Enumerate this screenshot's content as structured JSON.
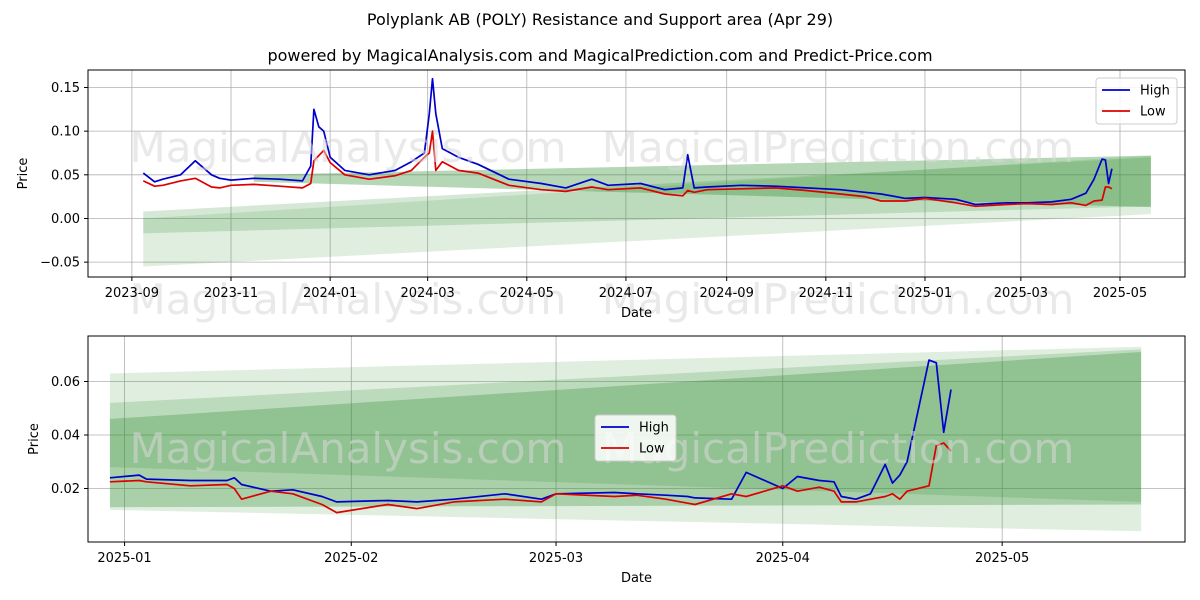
{
  "title": "Polyplank AB (POLY) Resistance and Support area (Apr 29)",
  "subtitle": "powered by MagicalAnalysis.com and MagicalPrediction.com and Predict-Price.com",
  "watermarks": [
    "MagicalAnalysis.com",
    "MagicalPrediction.com"
  ],
  "colors": {
    "high": "#0000cc",
    "low": "#dd0000",
    "band": "#2e8b2e",
    "grid": "#b0b0b0"
  },
  "chart_data": [
    {
      "type": "line",
      "xlabel": "Date",
      "ylabel": "Price",
      "xlim": [
        "2023-08-05",
        "2025-06-10"
      ],
      "ylim": [
        -0.067,
        0.17
      ],
      "x_ticks": [
        "2023-09",
        "2023-11",
        "2024-01",
        "2024-03",
        "2024-05",
        "2024-07",
        "2024-09",
        "2024-11",
        "2025-01",
        "2025-03",
        "2025-05"
      ],
      "y_ticks": [
        -0.05,
        0.0,
        0.05,
        0.1,
        0.15
      ],
      "y_tick_labels": [
        "−0.05",
        "0.00",
        "0.05",
        "0.10",
        "0.15"
      ],
      "grid": true,
      "legend": "top-right",
      "legend_entries": [
        "High",
        "Low"
      ],
      "bands": [
        {
          "x": [
            "2023-09-08",
            "2025-05-20"
          ],
          "lower": [
            -0.055,
            0.005
          ],
          "upper": [
            0.0,
            0.072
          ],
          "opacity": 0.15
        },
        {
          "x": [
            "2023-09-08",
            "2025-05-20"
          ],
          "lower": [
            -0.017,
            0.014
          ],
          "upper": [
            0.008,
            0.07
          ],
          "opacity": 0.2
        },
        {
          "x": [
            "2023-11-15",
            "2025-05-20"
          ],
          "lower": [
            0.042,
            0.013
          ],
          "upper": [
            0.05,
            0.072
          ],
          "opacity": 0.35
        }
      ],
      "series": [
        {
          "name": "High",
          "x": [
            "2023-09-08",
            "2023-09-15",
            "2023-09-20",
            "2023-10-01",
            "2023-10-10",
            "2023-10-20",
            "2023-10-25",
            "2023-11-01",
            "2023-11-15",
            "2023-12-01",
            "2023-12-15",
            "2023-12-20",
            "2023-12-22",
            "2023-12-25",
            "2023-12-28",
            "2024-01-01",
            "2024-01-10",
            "2024-01-25",
            "2024-02-10",
            "2024-02-20",
            "2024-02-28",
            "2024-03-02",
            "2024-03-04",
            "2024-03-06",
            "2024-03-10",
            "2024-03-20",
            "2024-04-01",
            "2024-04-20",
            "2024-05-10",
            "2024-05-25",
            "2024-06-10",
            "2024-06-20",
            "2024-07-10",
            "2024-07-25",
            "2024-08-05",
            "2024-08-08",
            "2024-08-12",
            "2024-08-20",
            "2024-09-10",
            "2024-10-01",
            "2024-10-20",
            "2024-11-10",
            "2024-11-25",
            "2024-12-05",
            "2024-12-20",
            "2025-01-01",
            "2025-01-20",
            "2025-02-01",
            "2025-02-20",
            "2025-03-05",
            "2025-03-20",
            "2025-04-01",
            "2025-04-10",
            "2025-04-15",
            "2025-04-20",
            "2025-04-22",
            "2025-04-24",
            "2025-04-26"
          ],
          "values": [
            0.052,
            0.042,
            0.045,
            0.05,
            0.066,
            0.05,
            0.046,
            0.044,
            0.046,
            0.045,
            0.043,
            0.06,
            0.125,
            0.105,
            0.1,
            0.07,
            0.055,
            0.05,
            0.055,
            0.065,
            0.075,
            0.12,
            0.16,
            0.12,
            0.08,
            0.07,
            0.062,
            0.045,
            0.04,
            0.035,
            0.045,
            0.038,
            0.04,
            0.033,
            0.035,
            0.073,
            0.035,
            0.036,
            0.038,
            0.037,
            0.035,
            0.033,
            0.03,
            0.028,
            0.023,
            0.024,
            0.022,
            0.016,
            0.018,
            0.018,
            0.019,
            0.022,
            0.029,
            0.045,
            0.068,
            0.067,
            0.04,
            0.057
          ]
        },
        {
          "name": "Low",
          "x": [
            "2023-09-08",
            "2023-09-15",
            "2023-09-20",
            "2023-10-01",
            "2023-10-10",
            "2023-10-20",
            "2023-10-25",
            "2023-11-01",
            "2023-11-15",
            "2023-12-01",
            "2023-12-15",
            "2023-12-20",
            "2023-12-22",
            "2023-12-25",
            "2023-12-28",
            "2024-01-01",
            "2024-01-10",
            "2024-01-25",
            "2024-02-10",
            "2024-02-20",
            "2024-02-28",
            "2024-03-02",
            "2024-03-04",
            "2024-03-06",
            "2024-03-10",
            "2024-03-20",
            "2024-04-01",
            "2024-04-20",
            "2024-05-10",
            "2024-05-25",
            "2024-06-10",
            "2024-06-20",
            "2024-07-10",
            "2024-07-25",
            "2024-08-05",
            "2024-08-08",
            "2024-08-12",
            "2024-08-20",
            "2024-09-10",
            "2024-10-01",
            "2024-10-20",
            "2024-11-10",
            "2024-11-25",
            "2024-12-05",
            "2024-12-20",
            "2025-01-01",
            "2025-01-20",
            "2025-02-01",
            "2025-02-20",
            "2025-03-05",
            "2025-03-20",
            "2025-04-01",
            "2025-04-10",
            "2025-04-15",
            "2025-04-20",
            "2025-04-22",
            "2025-04-24",
            "2025-04-26"
          ],
          "values": [
            0.043,
            0.037,
            0.038,
            0.043,
            0.046,
            0.036,
            0.035,
            0.038,
            0.039,
            0.037,
            0.035,
            0.04,
            0.066,
            0.072,
            0.078,
            0.064,
            0.05,
            0.045,
            0.049,
            0.055,
            0.07,
            0.075,
            0.1,
            0.055,
            0.065,
            0.055,
            0.052,
            0.038,
            0.033,
            0.031,
            0.036,
            0.033,
            0.035,
            0.028,
            0.026,
            0.032,
            0.03,
            0.033,
            0.034,
            0.035,
            0.032,
            0.028,
            0.025,
            0.02,
            0.02,
            0.023,
            0.018,
            0.014,
            0.016,
            0.017,
            0.016,
            0.018,
            0.015,
            0.02,
            0.021,
            0.036,
            0.036,
            0.034
          ]
        }
      ]
    },
    {
      "type": "line",
      "xlabel": "Date",
      "ylabel": "Price",
      "xlim": [
        "2024-12-27",
        "2025-05-26"
      ],
      "ylim": [
        0.0,
        0.077
      ],
      "x_ticks": [
        "2025-01",
        "2025-02",
        "2025-03",
        "2025-04",
        "2025-05"
      ],
      "y_ticks": [
        0.02,
        0.04,
        0.06
      ],
      "y_tick_labels": [
        "0.02",
        "0.04",
        "0.06"
      ],
      "grid": true,
      "legend": "center",
      "legend_entries": [
        "High",
        "Low"
      ],
      "bands": [
        {
          "x": [
            "2024-12-30",
            "2025-05-20"
          ],
          "lower": [
            0.012,
            0.004
          ],
          "upper": [
            0.063,
            0.073
          ],
          "opacity": 0.15
        },
        {
          "x": [
            "2024-12-30",
            "2025-05-20"
          ],
          "lower": [
            0.028,
            0.015
          ],
          "upper": [
            0.052,
            0.072
          ],
          "opacity": 0.2
        },
        {
          "x": [
            "2024-12-30",
            "2025-05-20"
          ],
          "lower": [
            0.013,
            0.014
          ],
          "upper": [
            0.046,
            0.071
          ],
          "opacity": 0.3
        }
      ],
      "series": [
        {
          "name": "High",
          "x": [
            "2024-12-30",
            "2025-01-03",
            "2025-01-04",
            "2025-01-10",
            "2025-01-15",
            "2025-01-16",
            "2025-01-17",
            "2025-01-21",
            "2025-01-24",
            "2025-01-28",
            "2025-01-30",
            "2025-02-06",
            "2025-02-10",
            "2025-02-15",
            "2025-02-22",
            "2025-02-27",
            "2025-03-01",
            "2025-03-09",
            "2025-03-12",
            "2025-03-16",
            "2025-03-19",
            "2025-03-20",
            "2025-03-25",
            "2025-03-27",
            "2025-04-01",
            "2025-04-03",
            "2025-04-06",
            "2025-04-08",
            "2025-04-09",
            "2025-04-11",
            "2025-04-13",
            "2025-04-15",
            "2025-04-16",
            "2025-04-17",
            "2025-04-18",
            "2025-04-21",
            "2025-04-22",
            "2025-04-23",
            "2025-04-24"
          ],
          "values": [
            0.024,
            0.025,
            0.0235,
            0.023,
            0.023,
            0.024,
            0.0215,
            0.019,
            0.0195,
            0.017,
            0.015,
            0.0155,
            0.015,
            0.016,
            0.018,
            0.016,
            0.018,
            0.0185,
            0.018,
            0.0175,
            0.017,
            0.0165,
            0.016,
            0.026,
            0.02,
            0.0245,
            0.023,
            0.0225,
            0.017,
            0.016,
            0.018,
            0.029,
            0.022,
            0.025,
            0.03,
            0.068,
            0.067,
            0.041,
            0.057
          ]
        },
        {
          "name": "Low",
          "x": [
            "2024-12-30",
            "2025-01-03",
            "2025-01-04",
            "2025-01-10",
            "2025-01-15",
            "2025-01-16",
            "2025-01-17",
            "2025-01-21",
            "2025-01-24",
            "2025-01-28",
            "2025-01-30",
            "2025-02-06",
            "2025-02-10",
            "2025-02-15",
            "2025-02-22",
            "2025-02-27",
            "2025-03-01",
            "2025-03-09",
            "2025-03-12",
            "2025-03-16",
            "2025-03-19",
            "2025-03-20",
            "2025-03-25",
            "2025-03-27",
            "2025-04-01",
            "2025-04-03",
            "2025-04-06",
            "2025-04-08",
            "2025-04-09",
            "2025-04-11",
            "2025-04-13",
            "2025-04-15",
            "2025-04-16",
            "2025-04-17",
            "2025-04-18",
            "2025-04-21",
            "2025-04-22",
            "2025-04-23",
            "2025-04-24"
          ],
          "values": [
            0.0225,
            0.023,
            0.0225,
            0.021,
            0.0215,
            0.02,
            0.016,
            0.019,
            0.018,
            0.014,
            0.011,
            0.014,
            0.0125,
            0.015,
            0.016,
            0.015,
            0.018,
            0.017,
            0.0175,
            0.016,
            0.0145,
            0.014,
            0.018,
            0.017,
            0.021,
            0.019,
            0.0205,
            0.019,
            0.015,
            0.015,
            0.016,
            0.017,
            0.018,
            0.016,
            0.019,
            0.021,
            0.036,
            0.037,
            0.034
          ]
        }
      ]
    }
  ]
}
